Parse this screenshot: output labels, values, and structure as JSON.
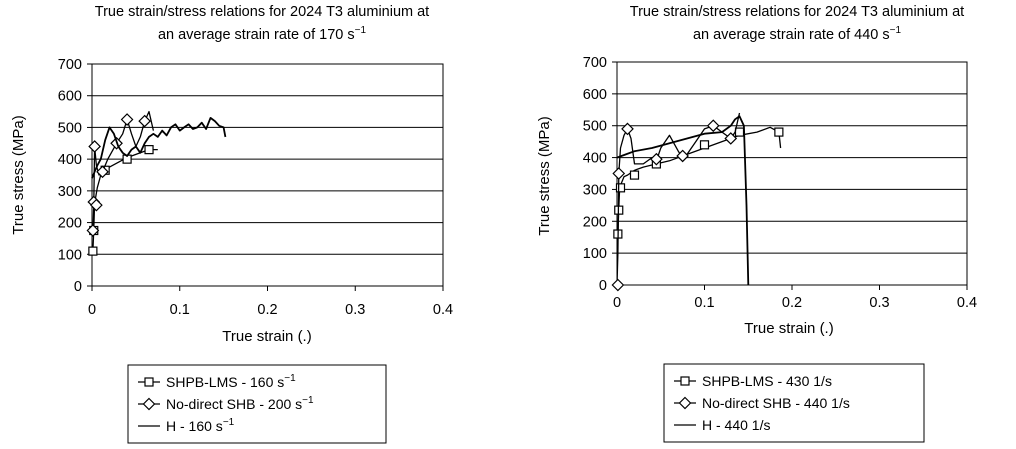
{
  "chart_data": [
    {
      "type": "line",
      "title_line1": "True strain/stress relations for 2024 T3 aluminium at",
      "title_line2": "an average strain rate of 170 s",
      "title_sup": "−1",
      "xlabel": "True strain (.)",
      "ylabel": "True stress (MPa)",
      "xlim": [
        0,
        0.4
      ],
      "ylim": [
        0,
        700
      ],
      "xticks": [
        "0",
        "0.1",
        "0.2",
        "0.3",
        "0.4"
      ],
      "yticks": [
        "0",
        "100",
        "200",
        "300",
        "400",
        "500",
        "600",
        "700"
      ],
      "grid": "horizontal",
      "legend_position": "bottom",
      "legend": [
        {
          "label": "SHPB-LMS - 160 s",
          "sup": "−1",
          "marker": "square"
        },
        {
          "label": "No-direct SHB - 200 s",
          "sup": "−1",
          "marker": "diamond"
        },
        {
          "label": "H - 160 s",
          "sup": "−1",
          "marker": "none"
        }
      ],
      "series": [
        {
          "name": "SHPB-LMS - 160 s−1",
          "marker": "square",
          "x": [
            0.001,
            0.002,
            0.003,
            0.006,
            0.01,
            0.015,
            0.02,
            0.03,
            0.04,
            0.05,
            0.065,
            0.075
          ],
          "y": [
            110,
            180,
            260,
            310,
            350,
            370,
            375,
            390,
            405,
            415,
            430,
            430
          ],
          "markers_x": [
            0.001,
            0.002,
            0.015,
            0.04,
            0.065
          ],
          "markers_y": [
            110,
            175,
            365,
            400,
            430
          ]
        },
        {
          "name": "No-direct SHB - 200 s−1",
          "marker": "diamond",
          "x": [
            0.001,
            0.002,
            0.003,
            0.005,
            0.008,
            0.012,
            0.018,
            0.022,
            0.028,
            0.035,
            0.04,
            0.045,
            0.05,
            0.055,
            0.06,
            0.065,
            0.07
          ],
          "y": [
            170,
            260,
            440,
            380,
            350,
            360,
            400,
            420,
            450,
            480,
            525,
            480,
            440,
            470,
            520,
            550,
            490
          ],
          "markers_x": [
            0.001,
            0.002,
            0.003,
            0.005,
            0.012,
            0.028,
            0.04,
            0.06
          ],
          "markers_y": [
            175,
            265,
            440,
            255,
            360,
            450,
            525,
            520
          ]
        },
        {
          "name": "H - 160 s−1",
          "marker": "none",
          "x": [
            0.0,
            0.003,
            0.006,
            0.01,
            0.015,
            0.02,
            0.025,
            0.03,
            0.035,
            0.04,
            0.045,
            0.05,
            0.055,
            0.06,
            0.065,
            0.07,
            0.075,
            0.08,
            0.085,
            0.09,
            0.095,
            0.1,
            0.105,
            0.11,
            0.115,
            0.12,
            0.125,
            0.13,
            0.135,
            0.14,
            0.145,
            0.15,
            0.152
          ],
          "y": [
            340,
            360,
            380,
            400,
            460,
            500,
            480,
            440,
            420,
            410,
            430,
            440,
            420,
            450,
            470,
            480,
            470,
            490,
            475,
            500,
            510,
            490,
            500,
            510,
            495,
            500,
            515,
            495,
            530,
            520,
            505,
            500,
            470
          ]
        }
      ]
    },
    {
      "type": "line",
      "title_line1": "True strain/stress relations for 2024 T3 aluminium at",
      "title_line2": "an average strain rate of 440 s",
      "title_sup": "−1",
      "xlabel": "True strain (.)",
      "ylabel": "True stress (MPa)",
      "xlim": [
        0,
        0.4
      ],
      "ylim": [
        0,
        700
      ],
      "xticks": [
        "0",
        "0.1",
        "0.2",
        "0.3",
        "0.4"
      ],
      "yticks": [
        "0",
        "100",
        "200",
        "300",
        "400",
        "500",
        "600",
        "700"
      ],
      "grid": "horizontal",
      "legend_position": "bottom",
      "legend": [
        {
          "label": "SHPB-LMS - 430 1/s",
          "sup": "",
          "marker": "square"
        },
        {
          "label": "No-direct SHB - 440 1/s",
          "sup": "",
          "marker": "diamond"
        },
        {
          "label": "H - 440 1/s",
          "sup": "",
          "marker": "none"
        }
      ],
      "series": [
        {
          "name": "SHPB-LMS - 430 1/s",
          "marker": "square",
          "x": [
            0.001,
            0.002,
            0.003,
            0.005,
            0.008,
            0.012,
            0.02,
            0.03,
            0.045,
            0.06,
            0.08,
            0.1,
            0.12,
            0.14,
            0.16,
            0.175,
            0.185,
            0.187
          ],
          "y": [
            160,
            240,
            300,
            320,
            340,
            345,
            360,
            370,
            380,
            390,
            410,
            430,
            450,
            470,
            480,
            495,
            480,
            430
          ],
          "markers_x": [
            0.001,
            0.002,
            0.004,
            0.02,
            0.045,
            0.1,
            0.14,
            0.185
          ],
          "markers_y": [
            160,
            235,
            305,
            345,
            380,
            440,
            480,
            480
          ]
        },
        {
          "name": "No-direct SHB - 440 1/s",
          "marker": "diamond",
          "x": [
            0.0,
            0.001,
            0.002,
            0.004,
            0.008,
            0.012,
            0.016,
            0.02,
            0.03,
            0.04,
            0.045,
            0.05,
            0.06,
            0.07,
            0.075,
            0.08,
            0.09,
            0.1,
            0.11,
            0.12,
            0.13,
            0.135,
            0.14
          ],
          "y": [
            0,
            100,
            350,
            430,
            470,
            490,
            460,
            380,
            380,
            400,
            390,
            430,
            470,
            420,
            400,
            410,
            450,
            490,
            500,
            480,
            460,
            480,
            540
          ],
          "markers_x": [
            0.001,
            0.002,
            0.012,
            0.045,
            0.075,
            0.11,
            0.13
          ],
          "markers_y": [
            0,
            350,
            490,
            395,
            405,
            500,
            460
          ]
        },
        {
          "name": "H - 440 1/s",
          "marker": "none",
          "x": [
            0.0,
            0.005,
            0.01,
            0.02,
            0.04,
            0.06,
            0.08,
            0.1,
            0.12,
            0.13,
            0.135,
            0.14,
            0.145,
            0.148,
            0.15
          ],
          "y": [
            400,
            405,
            410,
            420,
            430,
            445,
            460,
            475,
            480,
            500,
            520,
            530,
            500,
            250,
            0
          ]
        }
      ]
    }
  ]
}
